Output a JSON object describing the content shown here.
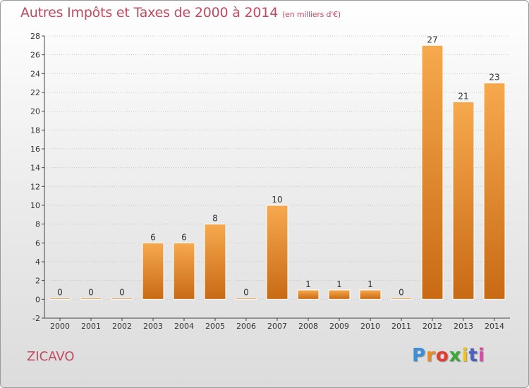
{
  "header": {
    "title": "Autres Impôts et Taxes de 2000 à 2014",
    "unit": "(en milliers d'€)"
  },
  "commune": "ZICAVO",
  "logo": {
    "text": "Proxiti",
    "letters": [
      "P",
      "r",
      "o",
      "x",
      "i",
      "t",
      "i"
    ]
  },
  "colors": {
    "bar": "#f08c2e",
    "bar_light": "#f7a94d",
    "bar_dark": "#c86a14",
    "title": "#c24a5e"
  },
  "chart_data": {
    "type": "bar",
    "categories": [
      "2000",
      "2001",
      "2002",
      "2003",
      "2004",
      "2005",
      "2006",
      "2007",
      "2008",
      "2009",
      "2010",
      "2011",
      "2012",
      "2013",
      "2014"
    ],
    "values": [
      0,
      0,
      0,
      6,
      6,
      8,
      0,
      10,
      1,
      1,
      1,
      0,
      27,
      21,
      23
    ],
    "data_labels": [
      "0",
      "0",
      "0",
      "6",
      "6",
      "8",
      "0",
      "10",
      "1",
      "1",
      "1",
      "0",
      "27",
      "21",
      "23"
    ],
    "ylim": [
      -2,
      28
    ],
    "yticks": [
      -2,
      0,
      2,
      4,
      6,
      8,
      10,
      12,
      14,
      16,
      18,
      20,
      22,
      24,
      26,
      28
    ],
    "grid": true,
    "legend": "none"
  }
}
